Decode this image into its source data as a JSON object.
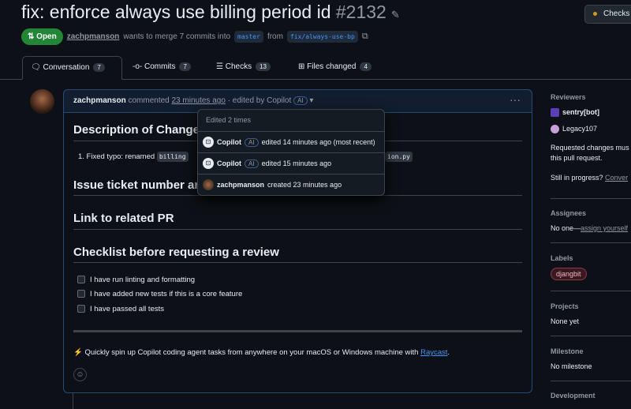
{
  "header": {
    "title": "fix: enforce always use billing period id",
    "number": "#2132",
    "checks_button": "Checks"
  },
  "meta": {
    "status": "Open",
    "author": "zachpmanson",
    "merge_text": "wants to merge 7 commits into",
    "base": "master",
    "from": "from",
    "head": "fix/always-use-bp"
  },
  "tabs": [
    {
      "label": "Conversation",
      "count": "7"
    },
    {
      "label": "Commits",
      "count": "7"
    },
    {
      "label": "Checks",
      "count": "13"
    },
    {
      "label": "Files changed",
      "count": "4"
    }
  ],
  "comment": {
    "author": "zachpmanson",
    "action": "commented",
    "time": "23 minutes ago",
    "edited": "· edited by Copilot",
    "ai": "AI",
    "h_description": "Description of Change",
    "list_item_prefix": "1. Fixed typo: renamed",
    "code_a": "billing",
    "code_b": "ion.py",
    "h_issue": "Issue ticket number ar",
    "h_link": "Link to related PR",
    "h_checklist": "Checklist before requesting a review",
    "checklist": [
      "I have run linting and formatting",
      "I have added new tests if this is a core feature",
      "I have passed all tests"
    ],
    "footer_text": "Quickly spin up Copilot coding agent tasks from anywhere on your macOS or Windows machine with",
    "footer_link": "Raycast",
    "footer_end": "."
  },
  "edit_history": {
    "title": "Edited 2 times",
    "rows": [
      {
        "user": "Copilot",
        "ai": "AI",
        "text": "edited 14 minutes ago (most recent)"
      },
      {
        "user": "Copilot",
        "ai": "AI",
        "text": "edited 15 minutes ago"
      },
      {
        "user": "zachpmanson",
        "text": "created 23 minutes ago"
      }
    ]
  },
  "sidebar": {
    "reviewers_title": "Reviewers",
    "reviewers": [
      "sentry[bot]",
      "Legacy107"
    ],
    "requested_changes": "Requested changes mus",
    "requested_changes_2": "this pull request.",
    "in_progress": "Still in progress?",
    "convert": "Conver",
    "assignees_title": "Assignees",
    "assignees_none": "No one—",
    "assign_yourself": "assign yourself",
    "labels_title": "Labels",
    "label": "djangbit",
    "projects_title": "Projects",
    "projects_value": "None yet",
    "milestone_title": "Milestone",
    "milestone_value": "No milestone",
    "development_title": "Development"
  },
  "colors": {
    "open": "#238636",
    "link": "#4493f8",
    "label_bg": "#3a1820"
  }
}
